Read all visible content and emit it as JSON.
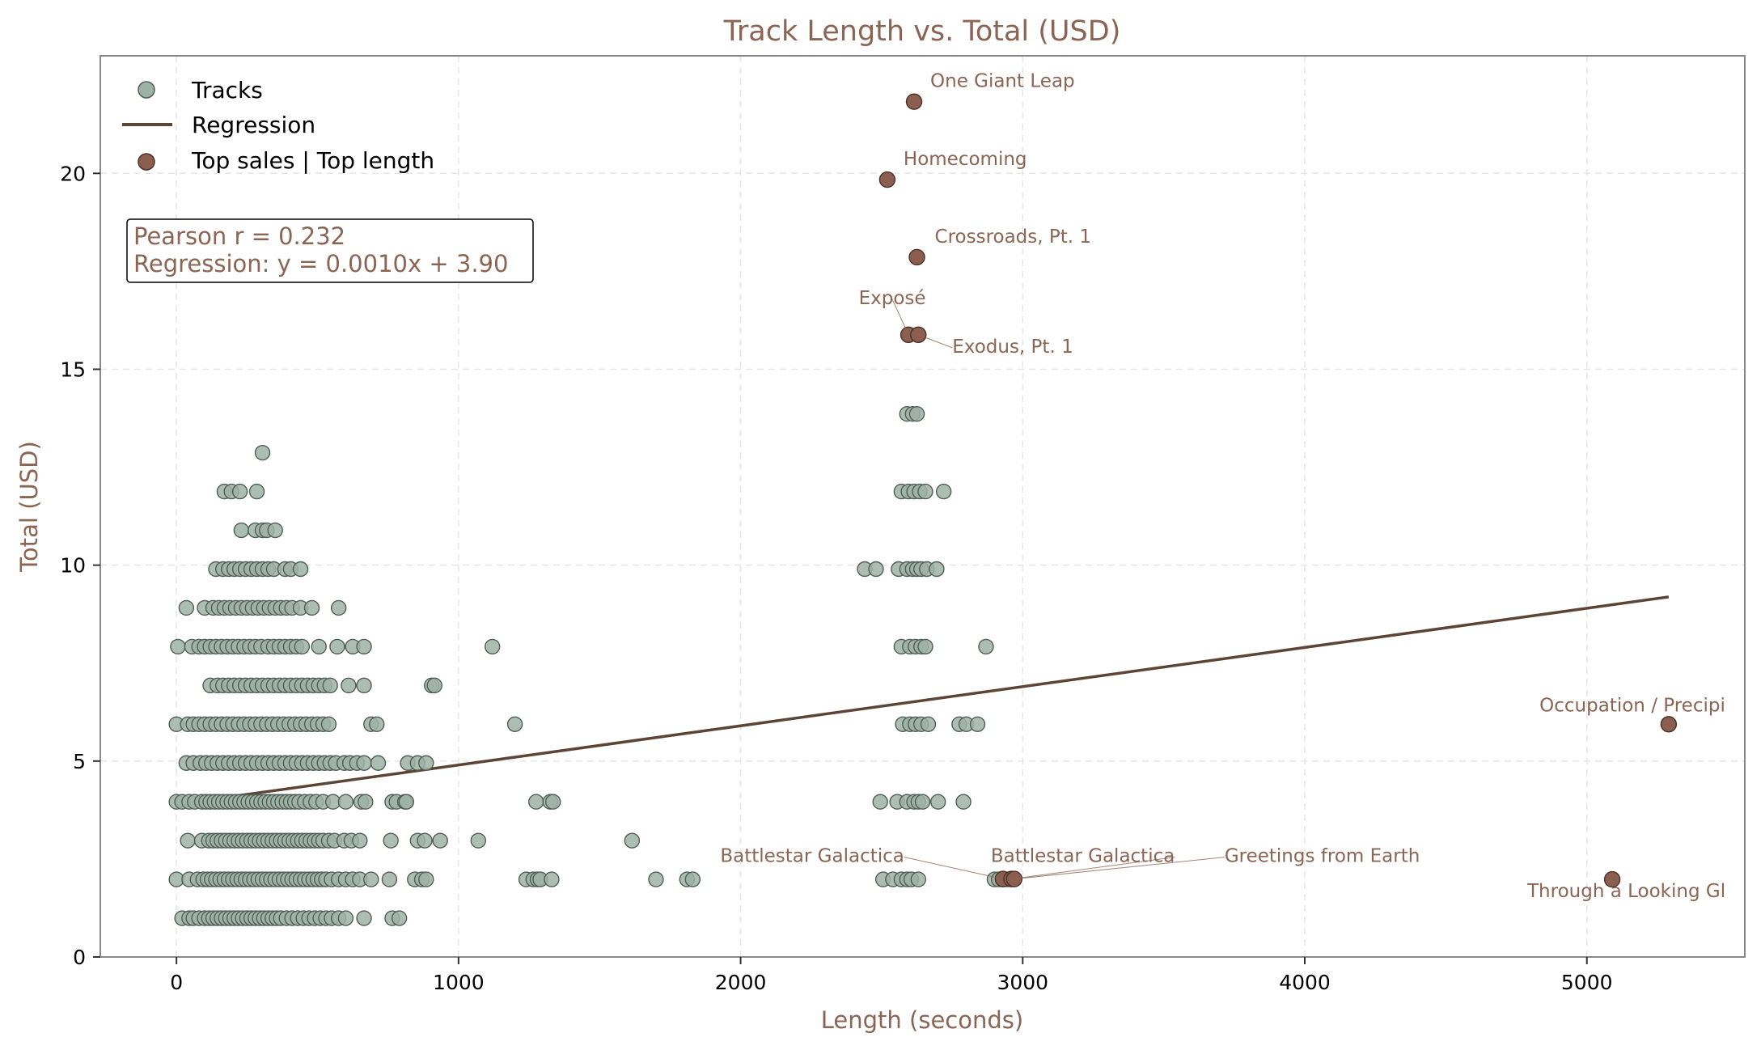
{
  "colors": {
    "text_accent": "#8B6553",
    "track_fill": "#9DB1A5",
    "track_edge": "#4F5E55",
    "highlight_fill": "#8B5E50",
    "highlight_edge": "#4A3128",
    "regression": "#5C4536",
    "grid": "#E6E6E6",
    "frame": "#888888"
  },
  "chart_data": {
    "type": "scatter",
    "title": "Track Length vs. Total (USD)",
    "xlabel": "Length (seconds)",
    "ylabel": "Total (USD)",
    "xlim": [
      -270,
      5560
    ],
    "ylim": [
      0,
      23
    ],
    "xticks": [
      0,
      1000,
      2000,
      3000,
      4000,
      5000
    ],
    "yticks": [
      0,
      5,
      10,
      15,
      20
    ],
    "grid": true,
    "legend_placement": "top-left",
    "legend": [
      "Tracks",
      "Regression",
      "Top sales | Top length"
    ],
    "stats": {
      "pearson": "Pearson r = 0.232",
      "regression": "Regression: y = 0.0010x + 3.90"
    },
    "regression": {
      "slope": 0.001,
      "intercept": 3.9,
      "x_range": [
        40,
        5290
      ]
    },
    "tracks_by_total": [
      {
        "y": 0.99,
        "x": [
          20,
          45,
          60,
          80,
          100,
          115,
          130,
          145,
          160,
          175,
          190,
          205,
          220,
          235,
          250,
          265,
          280,
          295,
          310,
          325,
          340,
          355,
          370,
          390,
          410,
          430,
          450,
          470,
          490,
          510,
          530,
          550,
          575,
          600,
          665,
          765,
          790
        ]
      },
      {
        "y": 1.98,
        "x": [
          0,
          45,
          75,
          95,
          110,
          125,
          140,
          155,
          170,
          185,
          200,
          215,
          230,
          245,
          260,
          275,
          290,
          305,
          320,
          335,
          350,
          365,
          380,
          395,
          410,
          425,
          440,
          455,
          470,
          485,
          500,
          515,
          530,
          550,
          575,
          600,
          625,
          650,
          690,
          755,
          845,
          870,
          885,
          1240,
          1265,
          1280,
          1290,
          1330,
          1700,
          1810,
          1830,
          2505,
          2540,
          2570,
          2590,
          2605,
          2630,
          2900,
          2915,
          2930,
          2945
        ]
      },
      {
        "y": 2.97,
        "x": [
          40,
          90,
          115,
          130,
          145,
          160,
          175,
          190,
          205,
          220,
          235,
          250,
          265,
          280,
          295,
          310,
          325,
          340,
          355,
          370,
          385,
          400,
          415,
          430,
          445,
          460,
          475,
          490,
          505,
          520,
          540,
          560,
          595,
          620,
          650,
          760,
          855,
          880,
          935,
          1070,
          1615
        ]
      },
      {
        "y": 3.96,
        "x": [
          0,
          20,
          45,
          65,
          90,
          105,
          120,
          135,
          150,
          165,
          180,
          195,
          210,
          225,
          240,
          255,
          270,
          285,
          300,
          315,
          330,
          345,
          360,
          375,
          390,
          405,
          420,
          435,
          455,
          475,
          495,
          520,
          555,
          600,
          655,
          670,
          765,
          780,
          810,
          815,
          1275,
          1325,
          1335,
          2495,
          2555,
          2590,
          2615,
          2630,
          2645,
          2700,
          2790
        ]
      },
      {
        "y": 4.95,
        "x": [
          35,
          60,
          85,
          105,
          125,
          145,
          165,
          185,
          205,
          225,
          245,
          265,
          285,
          305,
          325,
          345,
          365,
          385,
          405,
          425,
          445,
          465,
          485,
          505,
          525,
          545,
          565,
          595,
          615,
          640,
          665,
          715,
          820,
          855,
          885
        ]
      },
      {
        "y": 5.94,
        "x": [
          0,
          40,
          60,
          80,
          100,
          120,
          140,
          160,
          180,
          200,
          220,
          240,
          260,
          280,
          300,
          320,
          340,
          360,
          380,
          400,
          420,
          440,
          460,
          480,
          500,
          520,
          540,
          690,
          710,
          1200,
          2575,
          2600,
          2620,
          2640,
          2665,
          2775,
          2800,
          2840
        ]
      },
      {
        "y": 6.93,
        "x": [
          120,
          145,
          165,
          185,
          205,
          225,
          245,
          265,
          285,
          305,
          325,
          345,
          365,
          385,
          405,
          425,
          445,
          465,
          485,
          505,
          525,
          545,
          610,
          665,
          905,
          915
        ]
      },
      {
        "y": 7.92,
        "x": [
          5,
          55,
          80,
          100,
          120,
          140,
          160,
          180,
          200,
          220,
          240,
          260,
          280,
          300,
          325,
          345,
          365,
          385,
          405,
          425,
          445,
          505,
          570,
          625,
          665,
          1120,
          2570,
          2600,
          2620,
          2640,
          2655,
          2870
        ]
      },
      {
        "y": 8.91,
        "x": [
          35,
          100,
          130,
          150,
          170,
          190,
          210,
          230,
          250,
          270,
          290,
          310,
          330,
          350,
          370,
          390,
          410,
          440,
          480,
          575
        ]
      },
      {
        "y": 9.9,
        "x": [
          140,
          165,
          185,
          205,
          225,
          245,
          265,
          285,
          305,
          325,
          345,
          385,
          405,
          440,
          2440,
          2480,
          2560,
          2590,
          2610,
          2625,
          2640,
          2660,
          2695
        ]
      },
      {
        "y": 10.89,
        "x": [
          230,
          280,
          305,
          320,
          350
        ]
      },
      {
        "y": 11.88,
        "x": [
          170,
          195,
          225,
          285,
          2570,
          2595,
          2615,
          2635,
          2655,
          2720
        ]
      },
      {
        "y": 12.87,
        "x": [
          305
        ]
      },
      {
        "y": 13.86,
        "x": [
          2590,
          2610,
          2625
        ]
      }
    ],
    "highlights": [
      {
        "label": "One Giant Leap",
        "x": 2615,
        "y": 21.83,
        "dx": 20,
        "dy": -18,
        "anchor": "start"
      },
      {
        "label": "Homecoming",
        "x": 2520,
        "y": 19.84,
        "dx": 20,
        "dy": -18,
        "anchor": "start"
      },
      {
        "label": "Crossroads, Pt. 1",
        "x": 2625,
        "y": 17.86,
        "dx": 22,
        "dy": -18,
        "anchor": "start"
      },
      {
        "label": "Exposé",
        "x": 2595,
        "y": 15.88,
        "dx": -20,
        "dy": -38,
        "anchor": "middle",
        "leader": true
      },
      {
        "label": "Exodus, Pt. 1",
        "x": 2630,
        "y": 15.88,
        "dx": 42,
        "dy": 22,
        "anchor": "start",
        "leader": true
      },
      {
        "label": "Occupation / Precipi",
        "x": 5290,
        "y": 5.94,
        "dx": 70,
        "dy": -16,
        "anchor": "end"
      },
      {
        "label": "Battlestar Galactica",
        "x": 2930,
        "y": 1.99,
        "dx": -122,
        "dy": -21,
        "anchor": "end",
        "leader": true
      },
      {
        "label": "Battlestar Galactica",
        "x": 2960,
        "y": 1.99,
        "dx": 202,
        "dy": -21,
        "anchor": "end",
        "leader": true
      },
      {
        "label": "Greetings from Earth",
        "x": 2970,
        "y": 1.99,
        "dx": 260,
        "dy": -21,
        "anchor": "start",
        "leader": true
      },
      {
        "label": "Through a Looking Gl",
        "x": 5090,
        "y": 1.98,
        "dx": 140,
        "dy": 22,
        "anchor": "end"
      }
    ]
  }
}
